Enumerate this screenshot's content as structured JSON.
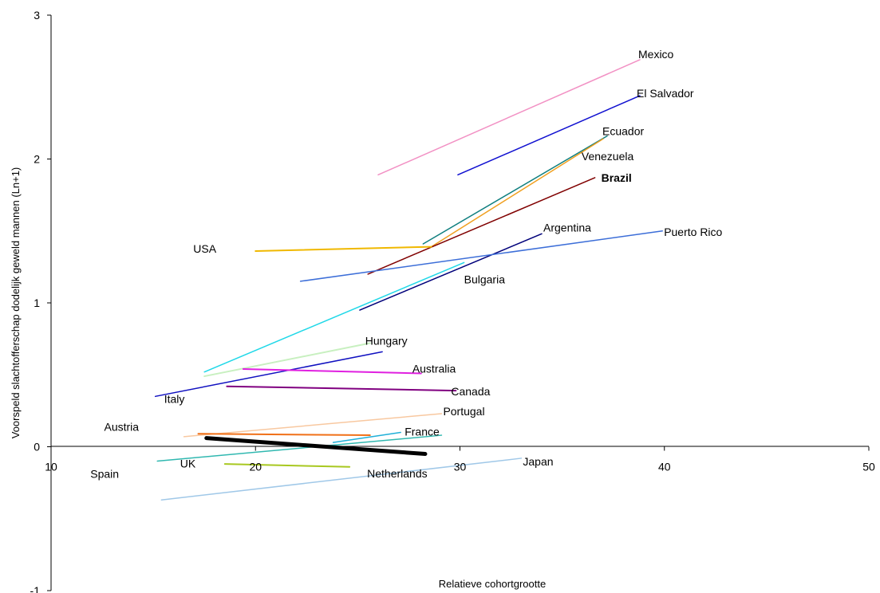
{
  "chart_data": {
    "type": "line",
    "title": "",
    "xlabel": "Relatieve cohortgrootte",
    "ylabel": "Voorspeld slachtofferschap dodelijk geweld mannen (Ln+1)",
    "xlim": [
      10,
      50
    ],
    "ylim": [
      -1,
      3
    ],
    "x_ticks": [
      "10",
      "20",
      "30",
      "40",
      "50"
    ],
    "y_ticks": [
      "-1",
      "0",
      "1",
      "2",
      "3"
    ],
    "grid": false,
    "legend": "none (direct labels)",
    "series": [
      {
        "name": "Mexico",
        "color": "#f291c4",
        "width": 1.5,
        "x": [
          26.0,
          38.8
        ],
        "y": [
          1.89,
          2.69
        ]
      },
      {
        "name": "El Salvador",
        "color": "#1010d0",
        "width": 1.5,
        "x": [
          29.9,
          38.8
        ],
        "y": [
          1.89,
          2.44
        ]
      },
      {
        "name": "Ecuador",
        "color": "#0f7f7f",
        "width": 1.5,
        "x": [
          28.2,
          37.2
        ],
        "y": [
          1.41,
          2.16
        ]
      },
      {
        "name": "Venezuela",
        "color": "#f0a020",
        "width": 1.5,
        "x": [
          28.6,
          37.0
        ],
        "y": [
          1.39,
          2.14
        ]
      },
      {
        "name": "Brazil",
        "color": "#800000",
        "width": 1.5,
        "x": [
          25.5,
          36.6
        ],
        "y": [
          1.2,
          1.87
        ],
        "bold": true
      },
      {
        "name": "Argentina",
        "color": "#00007a",
        "width": 1.5,
        "x": [
          25.1,
          34.0
        ],
        "y": [
          0.95,
          1.48
        ]
      },
      {
        "name": "Puerto Rico",
        "color": "#3c6ed8",
        "width": 1.5,
        "x": [
          22.2,
          39.9
        ],
        "y": [
          1.15,
          1.5
        ]
      },
      {
        "name": "USA",
        "color": "#f0b800",
        "width": 2,
        "x": [
          20.0,
          28.6
        ],
        "y": [
          1.36,
          1.39
        ]
      },
      {
        "name": "Bulgaria",
        "color": "#20d8e8",
        "width": 1.5,
        "x": [
          17.5,
          30.2
        ],
        "y": [
          0.52,
          1.28
        ]
      },
      {
        "name": "Hungary",
        "color": "#c8f0c0",
        "width": 2,
        "x": [
          17.5,
          25.6
        ],
        "y": [
          0.49,
          0.72
        ]
      },
      {
        "name": "Italy",
        "color": "#1010c0",
        "width": 1.5,
        "x": [
          15.1,
          26.2
        ],
        "y": [
          0.35,
          0.66
        ]
      },
      {
        "name": "Australia",
        "color": "#e020e0",
        "width": 2,
        "x": [
          19.4,
          28.1
        ],
        "y": [
          0.54,
          0.51
        ]
      },
      {
        "name": "Canada",
        "color": "#800080",
        "width": 2,
        "x": [
          18.6,
          29.8
        ],
        "y": [
          0.42,
          0.39
        ]
      },
      {
        "name": "Portugal",
        "color": "#f8c8a0",
        "width": 1.5,
        "x": [
          16.5,
          29.1
        ],
        "y": [
          0.07,
          0.23
        ]
      },
      {
        "name": "Austria",
        "color": "#f07018",
        "width": 2,
        "x": [
          17.2,
          25.6
        ],
        "y": [
          0.09,
          0.08
        ]
      },
      {
        "name": "France",
        "color": "#20b0d8",
        "width": 1.5,
        "x": [
          23.8,
          27.1
        ],
        "y": [
          0.03,
          0.1
        ]
      },
      {
        "name": "Spain",
        "color": "#30b8b0",
        "width": 1.5,
        "x": [
          15.2,
          29.1
        ],
        "y": [
          -0.1,
          0.08
        ]
      },
      {
        "name": "UK",
        "color": "#000000",
        "width": 5,
        "x": [
          17.6,
          28.3
        ],
        "y": [
          0.06,
          -0.05
        ]
      },
      {
        "name": "Netherlands",
        "color": "#a8c820",
        "width": 2,
        "x": [
          18.5,
          24.6
        ],
        "y": [
          -0.12,
          -0.14
        ]
      },
      {
        "name": "Japan",
        "color": "#a0c8e8",
        "width": 1.5,
        "x": [
          15.4,
          33.0
        ],
        "y": [
          -0.37,
          -0.08
        ]
      }
    ]
  }
}
